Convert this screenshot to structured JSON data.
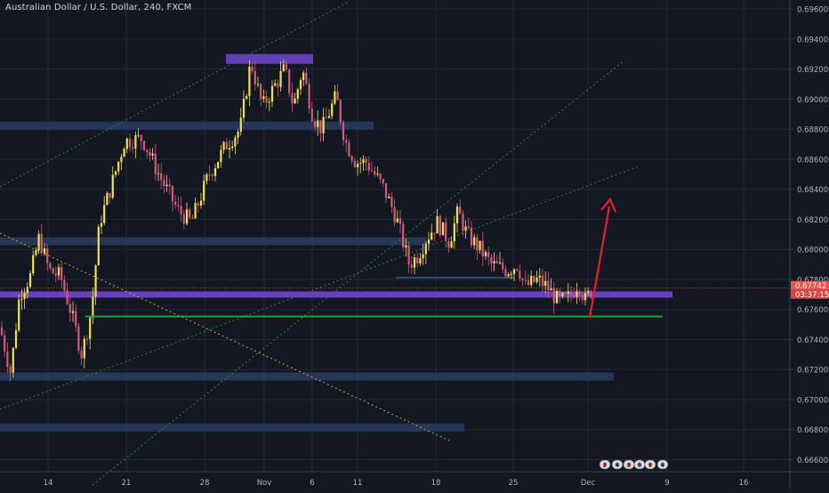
{
  "header": {
    "title": "Australian Dollar / U.S. Dollar, 240, FXCM"
  },
  "colors": {
    "background": "#131722",
    "grid": "#232838",
    "axis_text": "#b2b5be",
    "candle_up": "#f0e24b",
    "candle_down": "#d85a7a",
    "zone": "#2a3f66",
    "purple_zone": "#6b44c9",
    "green_line": "#14a83c",
    "price_line": "#ef5350",
    "arrow": "#e8202e",
    "channel_green": "#1f8f3b",
    "diagonal_yellow": "#c8b02a"
  },
  "price_scale": {
    "ticks": [
      "0.69600",
      "0.69400",
      "0.69200",
      "0.69000",
      "0.68800",
      "0.68600",
      "0.68400",
      "0.68200",
      "0.68000",
      "0.67800",
      "0.67600",
      "0.67400",
      "0.67200",
      "0.67000",
      "0.66800",
      "0.66600"
    ],
    "last_price": "0.67742",
    "countdown": "03:37:15"
  },
  "time_scale": {
    "ticks": [
      "14",
      "21",
      "28",
      "Nov",
      "6",
      "11",
      "18",
      "25",
      "Dec",
      "9",
      "16"
    ]
  },
  "chart_data": {
    "type": "candlestick",
    "title": "Australian Dollar / U.S. Dollar, 240, FXCM",
    "ylim": [
      0.6652,
      0.6966
    ],
    "x_ticks": [
      "14",
      "21",
      "28",
      "Nov",
      "6",
      "11",
      "18",
      "25",
      "Dec",
      "9",
      "16"
    ],
    "path_points": [
      [
        0,
        0.6748
      ],
      [
        12,
        0.6718
      ],
      [
        22,
        0.677
      ],
      [
        34,
        0.6782
      ],
      [
        44,
        0.6808
      ],
      [
        55,
        0.6786
      ],
      [
        68,
        0.6782
      ],
      [
        80,
        0.6758
      ],
      [
        92,
        0.673
      ],
      [
        103,
        0.676
      ],
      [
        112,
        0.6818
      ],
      [
        125,
        0.6842
      ],
      [
        140,
        0.6872
      ],
      [
        160,
        0.6874
      ],
      [
        180,
        0.6848
      ],
      [
        200,
        0.6826
      ],
      [
        215,
        0.6818
      ],
      [
        235,
        0.685
      ],
      [
        255,
        0.687
      ],
      [
        270,
        0.688
      ],
      [
        282,
        0.6925
      ],
      [
        295,
        0.6895
      ],
      [
        308,
        0.6908
      ],
      [
        320,
        0.692
      ],
      [
        330,
        0.6895
      ],
      [
        340,
        0.692
      ],
      [
        352,
        0.6888
      ],
      [
        362,
        0.688
      ],
      [
        378,
        0.6902
      ],
      [
        388,
        0.6872
      ],
      [
        400,
        0.6858
      ],
      [
        412,
        0.6858
      ],
      [
        430,
        0.6842
      ],
      [
        445,
        0.6822
      ],
      [
        460,
        0.679
      ],
      [
        470,
        0.6796
      ],
      [
        480,
        0.6808
      ],
      [
        492,
        0.6818
      ],
      [
        505,
        0.6805
      ],
      [
        515,
        0.6825
      ],
      [
        525,
        0.681
      ],
      [
        540,
        0.68
      ],
      [
        552,
        0.679
      ],
      [
        570,
        0.6786
      ],
      [
        582,
        0.679
      ],
      [
        590,
        0.6775
      ],
      [
        605,
        0.678
      ],
      [
        615,
        0.6775
      ],
      [
        628,
        0.6765
      ],
      [
        640,
        0.6768
      ],
      [
        650,
        0.6778
      ],
      [
        658,
        0.6766
      ],
      [
        666,
        0.6774
      ]
    ],
    "zones": [
      {
        "x1": 0,
        "x2": 420,
        "y_top": 0.6885,
        "y_bottom": 0.6881
      },
      {
        "x1": 0,
        "x2": 480,
        "y_top": 0.6808,
        "y_bottom": 0.6804
      },
      {
        "x1": 0,
        "x2": 690,
        "y_top": 0.6718,
        "y_bottom": 0.6715
      },
      {
        "x1": 0,
        "x2": 522,
        "y_top": 0.6684,
        "y_bottom": 0.668
      }
    ],
    "purple_top_zone": {
      "x1": 254,
      "x2": 352,
      "y_top": 0.693,
      "y_bottom": 0.6926
    },
    "purple_main_zone": {
      "x1": 0,
      "x2": 756,
      "y_top": 0.6772,
      "y_bottom": 0.67685
    },
    "green_support": {
      "x1": 96,
      "x2": 745,
      "y": 0.67553
    },
    "last_price_line": 0.67742
  },
  "tool_badges": [
    "2",
    "4",
    "3",
    "6",
    "1",
    "4"
  ]
}
